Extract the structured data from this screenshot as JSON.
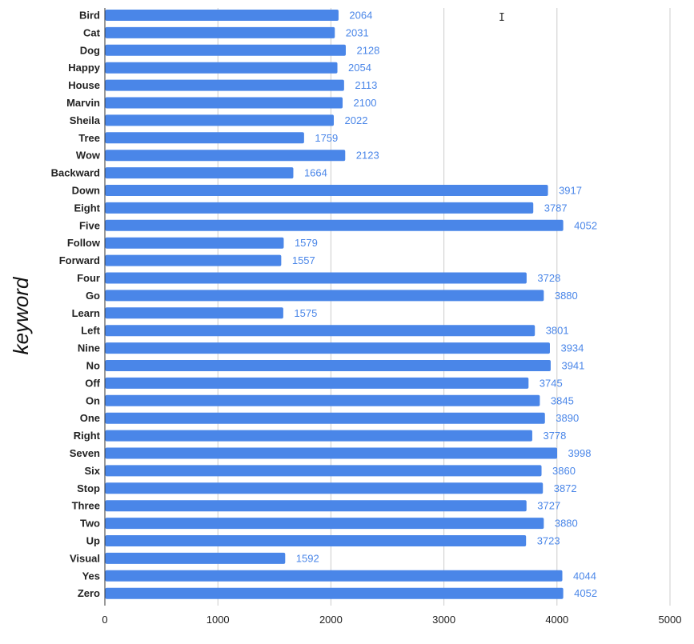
{
  "chart_data": {
    "type": "bar",
    "orientation": "horizontal",
    "ylabel": "keyword",
    "xlabel": "",
    "xlim": [
      0,
      5000
    ],
    "xticks": [
      0,
      1000,
      2000,
      3000,
      4000,
      5000
    ],
    "grid": true,
    "bar_color": "#4a86e8",
    "label_color": "#4a86e8",
    "categories": [
      "Bird",
      "Cat",
      "Dog",
      "Happy",
      "House",
      "Marvin",
      "Sheila",
      "Tree",
      "Wow",
      "Backward",
      "Down",
      "Eight",
      "Five",
      "Follow",
      "Forward",
      "Four",
      "Go",
      "Learn",
      "Left",
      "Nine",
      "No",
      "Off",
      "On",
      "One",
      "Right",
      "Seven",
      "Six",
      "Stop",
      "Three",
      "Two",
      "Up",
      "Visual",
      "Yes",
      "Zero"
    ],
    "values": [
      2064,
      2031,
      2128,
      2054,
      2113,
      2100,
      2022,
      1759,
      2123,
      1664,
      3917,
      3787,
      4052,
      1579,
      1557,
      3728,
      3880,
      1575,
      3801,
      3934,
      3941,
      3745,
      3845,
      3890,
      3778,
      3998,
      3860,
      3872,
      3727,
      3880,
      3723,
      1592,
      4044,
      4052
    ]
  },
  "cursor": "text-cursor-icon"
}
